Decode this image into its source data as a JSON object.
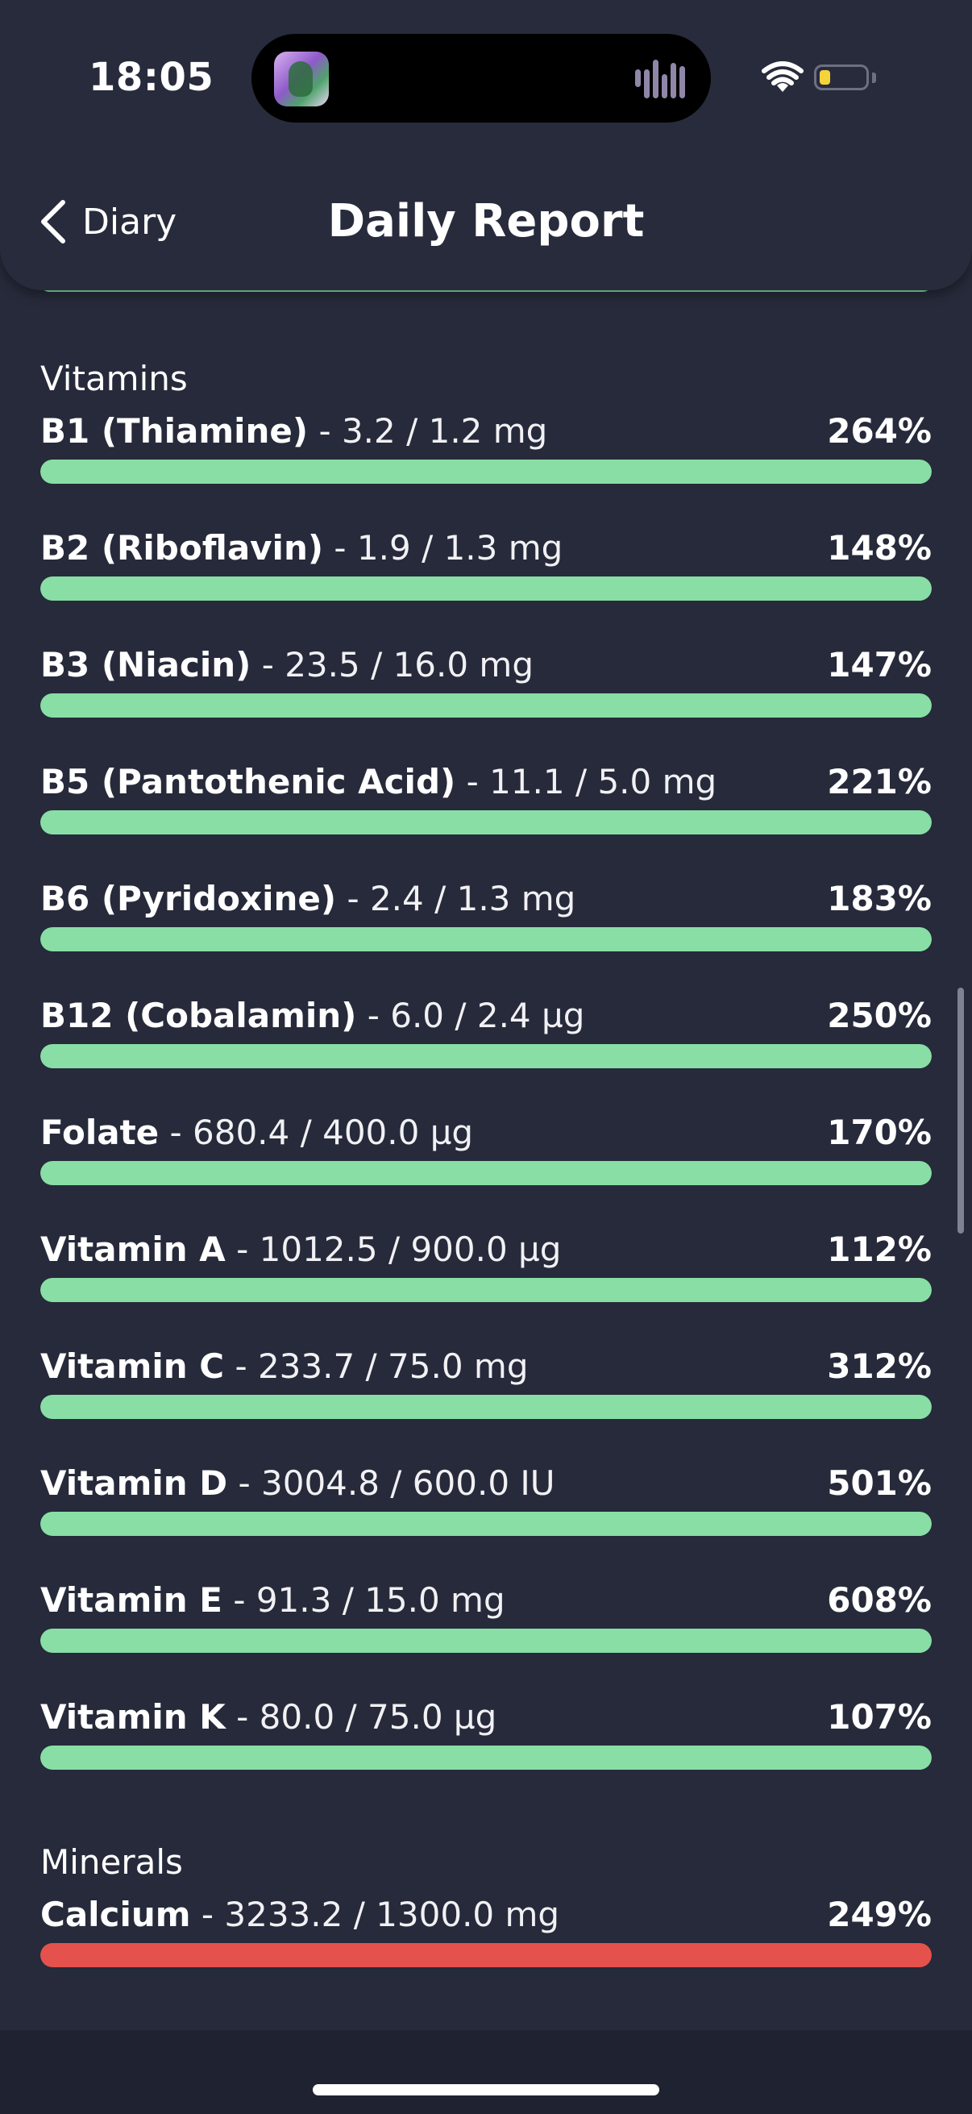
{
  "status": {
    "time": "18:05"
  },
  "nav": {
    "back_label": "Diary",
    "title": "Daily Report"
  },
  "colors": {
    "ok": "#88dea5",
    "over": "#e5514c",
    "background": "#262a3a"
  },
  "sections": [
    {
      "title": "Vitamins",
      "items": [
        {
          "name": "B1 (Thiamine)",
          "amount": " - 3.2 / 1.2 mg",
          "percent": "264%",
          "level": 1.0,
          "status": "ok"
        },
        {
          "name": "B2 (Riboflavin)",
          "amount": " - 1.9 / 1.3 mg",
          "percent": "148%",
          "level": 1.0,
          "status": "ok"
        },
        {
          "name": "B3 (Niacin)",
          "amount": " - 23.5 / 16.0 mg",
          "percent": "147%",
          "level": 1.0,
          "status": "ok"
        },
        {
          "name": "B5 (Pantothenic Acid)",
          "amount": " - 11.1 / 5.0 mg",
          "percent": "221%",
          "level": 1.0,
          "status": "ok"
        },
        {
          "name": "B6 (Pyridoxine)",
          "amount": " - 2.4 / 1.3 mg",
          "percent": "183%",
          "level": 1.0,
          "status": "ok"
        },
        {
          "name": "B12 (Cobalamin)",
          "amount": " - 6.0 / 2.4 µg",
          "percent": "250%",
          "level": 1.0,
          "status": "ok"
        },
        {
          "name": "Folate",
          "amount": " - 680.4 / 400.0 µg",
          "percent": "170%",
          "level": 1.0,
          "status": "ok"
        },
        {
          "name": "Vitamin A",
          "amount": " - 1012.5 / 900.0 µg",
          "percent": "112%",
          "level": 1.0,
          "status": "ok"
        },
        {
          "name": "Vitamin C",
          "amount": " - 233.7 / 75.0 mg",
          "percent": "312%",
          "level": 1.0,
          "status": "ok"
        },
        {
          "name": "Vitamin D",
          "amount": " - 3004.8 / 600.0 IU",
          "percent": "501%",
          "level": 1.0,
          "status": "ok"
        },
        {
          "name": "Vitamin E",
          "amount": " - 91.3 / 15.0 mg",
          "percent": "608%",
          "level": 1.0,
          "status": "ok"
        },
        {
          "name": "Vitamin K",
          "amount": " - 80.0 / 75.0 µg",
          "percent": "107%",
          "level": 1.0,
          "status": "ok"
        }
      ]
    },
    {
      "title": "Minerals",
      "items": [
        {
          "name": "Calcium",
          "amount": " - 3233.2 / 1300.0 mg",
          "percent": "249%",
          "level": 1.0,
          "status": "over"
        }
      ]
    }
  ]
}
